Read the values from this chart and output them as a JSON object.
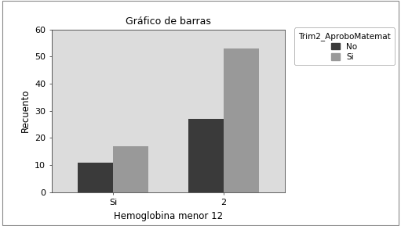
{
  "title": "Gráfico de barras",
  "xlabel": "Hemoglobina menor 12",
  "ylabel": "Recuento",
  "categories": [
    "Si",
    "2"
  ],
  "series": [
    {
      "label": "No",
      "values": [
        11,
        27
      ],
      "color": "#3a3a3a"
    },
    {
      "label": "Si",
      "values": [
        17,
        53
      ],
      "color": "#999999"
    }
  ],
  "legend_title": "Trim2_AproboMatemat",
  "ylim": [
    0,
    60
  ],
  "yticks": [
    0,
    10,
    20,
    30,
    40,
    50,
    60
  ],
  "bar_width": 0.32,
  "plot_bg_color": "#dcdcdc",
  "fig_bg_color": "#ffffff",
  "title_fontsize": 9,
  "axis_label_fontsize": 8.5,
  "tick_fontsize": 8,
  "legend_fontsize": 7.5,
  "legend_title_fontsize": 7.5
}
